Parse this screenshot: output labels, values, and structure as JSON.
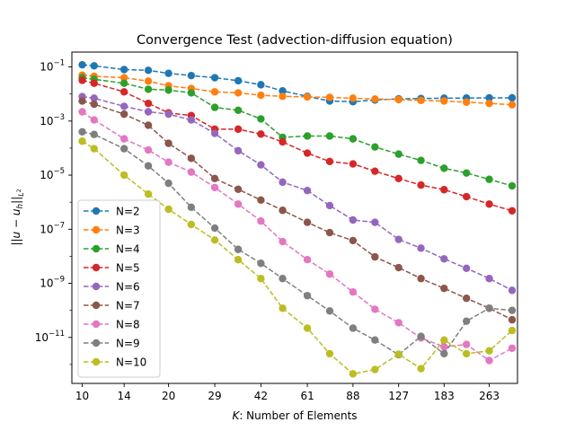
{
  "chart_data": {
    "type": "line",
    "title": "Convergence Test (advection-diffusion equation)",
    "xlabel": "K: Number of Elements",
    "xlabel_italic": "K",
    "xlabel_rest": ": Number of Elements",
    "ylabel": "||u − u_h||_{L²}",
    "ylabel_parts": {
      "open": "||",
      "u": "u",
      "minus": " − ",
      "uh": "u",
      "sub_h": "h",
      "close": "||",
      "sub_L": "L",
      "sup_2": "2"
    },
    "xscale": "log",
    "yscale": "log",
    "xlim": [
      9.2,
      330
    ],
    "ylim_exp": [
      -12.7,
      -0.45
    ],
    "x_ticks": [
      10,
      14,
      20,
      29,
      42,
      61,
      88,
      127,
      183,
      263
    ],
    "y_ticks": [
      {
        "exp": -1,
        "base": "10",
        "sup": "−1"
      },
      {
        "exp": -3,
        "base": "10",
        "sup": "−3"
      },
      {
        "exp": -5,
        "base": "10",
        "sup": "−5"
      },
      {
        "exp": -7,
        "base": "10",
        "sup": "−7"
      },
      {
        "exp": -9,
        "base": "10",
        "sup": "−9"
      },
      {
        "exp": -11,
        "base": "10",
        "sup": "−11"
      }
    ],
    "grid": false,
    "legend_position": "lower-left",
    "x": [
      10,
      11,
      14,
      17,
      20,
      24,
      29,
      35,
      42,
      50,
      61,
      73,
      88,
      105,
      127,
      152,
      183,
      219,
      263,
      316
    ],
    "series": [
      {
        "name": "N=2",
        "color": "#1f77b4",
        "values": [
          0.12,
          0.11,
          0.08,
          0.075,
          0.058,
          0.048,
          0.04,
          0.031,
          0.022,
          0.013,
          0.0082,
          0.0055,
          0.0052,
          0.006,
          0.0066,
          0.0068,
          0.007,
          0.0071,
          0.0072,
          0.0072
        ]
      },
      {
        "name": "N=3",
        "color": "#ff7f0e",
        "values": [
          0.05,
          0.045,
          0.04,
          0.03,
          0.02,
          0.016,
          0.012,
          0.011,
          0.009,
          0.0082,
          0.0078,
          0.0075,
          0.007,
          0.0065,
          0.0062,
          0.0058,
          0.0055,
          0.005,
          0.0045,
          0.004
        ]
      },
      {
        "name": "N=4",
        "color": "#2ca02c",
        "values": [
          0.04,
          0.035,
          0.025,
          0.015,
          0.014,
          0.011,
          0.0032,
          0.0025,
          0.0012,
          0.00025,
          0.00028,
          0.00028,
          0.00022,
          0.00011,
          6e-05,
          3.5e-05,
          1.8e-05,
          1.2e-05,
          7e-06,
          4e-06
        ]
      },
      {
        "name": "N=5",
        "color": "#d62728",
        "values": [
          0.032,
          0.025,
          0.012,
          0.0045,
          0.002,
          0.0016,
          0.0005,
          0.0005,
          0.00033,
          0.00017,
          6.5e-05,
          3.2e-05,
          2.6e-05,
          1.4e-05,
          7.5e-06,
          4.3e-06,
          2.9e-06,
          1.6e-06,
          8.5e-07,
          4.8e-07
        ]
      },
      {
        "name": "N=6",
        "color": "#9467bd",
        "values": [
          0.008,
          0.007,
          0.0035,
          0.0022,
          0.0018,
          0.0011,
          0.00035,
          8e-05,
          2.4e-05,
          5.5e-06,
          2.7e-06,
          7.5e-07,
          2.2e-07,
          1.8e-07,
          4.2e-08,
          2e-08,
          8e-09,
          3.6e-09,
          1.5e-09,
          5.5e-10
        ]
      },
      {
        "name": "N=7",
        "color": "#8c564b",
        "values": [
          0.0055,
          0.0042,
          0.0018,
          0.0007,
          0.00015,
          4.2e-05,
          7.5e-06,
          3e-06,
          1.2e-06,
          5e-07,
          1.8e-07,
          7.5e-08,
          3.8e-08,
          9.5e-09,
          3.8e-09,
          1.5e-09,
          6.5e-10,
          2.8e-10,
          1.2e-10,
          4.5e-11
        ]
      },
      {
        "name": "N=8",
        "color": "#e377c2",
        "values": [
          0.0022,
          0.0011,
          0.00022,
          8.5e-05,
          3e-05,
          1.3e-05,
          3.5e-06,
          8.5e-07,
          2e-07,
          3.5e-08,
          7.5e-09,
          2.2e-09,
          4.8e-10,
          1.1e-10,
          3.5e-11,
          9.5e-12,
          4.5e-12,
          5.5e-12,
          1.4e-12,
          4e-12
        ]
      },
      {
        "name": "N=9",
        "color": "#7f7f7f",
        "values": [
          0.0004,
          0.00032,
          9.5e-05,
          2.2e-05,
          5e-06,
          6.5e-07,
          1.1e-07,
          1.8e-08,
          5.5e-09,
          1.5e-09,
          3.5e-10,
          9.5e-11,
          2.2e-11,
          8e-12,
          2.3e-12,
          1.1e-11,
          2.5e-12,
          4e-11,
          1.2e-10,
          1e-10
        ]
      },
      {
        "name": "N=10",
        "color": "#bcbd22",
        "values": [
          0.00018,
          9.5e-05,
          1e-05,
          2e-06,
          5.5e-07,
          1.5e-07,
          4e-08,
          7.5e-09,
          1.5e-09,
          1.2e-10,
          2.2e-11,
          2.5e-12,
          4.5e-13,
          6.5e-13,
          2.4e-12,
          7e-13,
          8e-12,
          2.5e-12,
          3.2e-12,
          1.8e-11
        ]
      }
    ]
  }
}
